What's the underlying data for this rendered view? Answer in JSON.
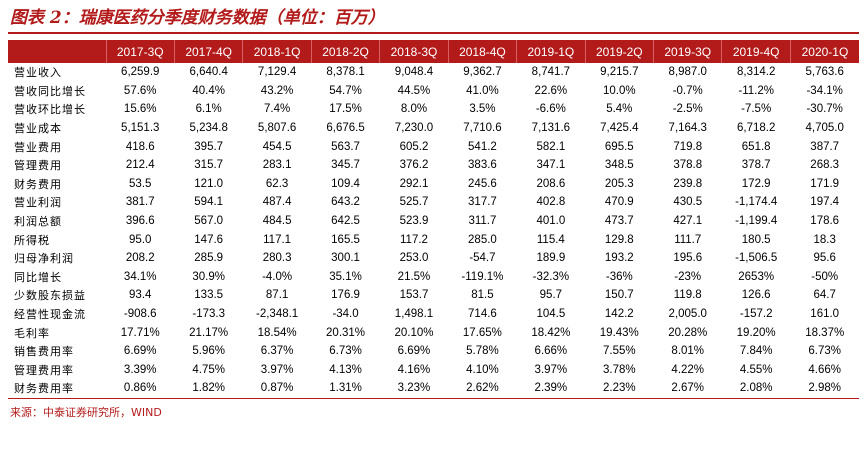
{
  "title": "图表 2：瑞康医药分季度财务数据（单位：百万）",
  "source": "来源：中泰证券研究所，WIND",
  "columns": [
    "2017-3Q",
    "2017-4Q",
    "2018-1Q",
    "2018-2Q",
    "2018-3Q",
    "2018-4Q",
    "2019-1Q",
    "2019-2Q",
    "2019-3Q",
    "2019-4Q",
    "2020-1Q"
  ],
  "rows": [
    {
      "label": "营业收入",
      "values": [
        "6,259.9",
        "6,640.4",
        "7,129.4",
        "8,378.1",
        "9,048.4",
        "9,362.7",
        "8,741.7",
        "9,215.7",
        "8,987.0",
        "8,314.2",
        "5,763.6"
      ]
    },
    {
      "label": "营收同比增长",
      "values": [
        "57.6%",
        "40.4%",
        "43.2%",
        "54.7%",
        "44.5%",
        "41.0%",
        "22.6%",
        "10.0%",
        "-0.7%",
        "-11.2%",
        "-34.1%"
      ]
    },
    {
      "label": "营收环比增长",
      "values": [
        "15.6%",
        "6.1%",
        "7.4%",
        "17.5%",
        "8.0%",
        "3.5%",
        "-6.6%",
        "5.4%",
        "-2.5%",
        "-7.5%",
        "-30.7%"
      ]
    },
    {
      "label": "营业成本",
      "values": [
        "5,151.3",
        "5,234.8",
        "5,807.6",
        "6,676.5",
        "7,230.0",
        "7,710.6",
        "7,131.6",
        "7,425.4",
        "7,164.3",
        "6,718.2",
        "4,705.0"
      ]
    },
    {
      "label": "营业费用",
      "values": [
        "418.6",
        "395.7",
        "454.5",
        "563.7",
        "605.2",
        "541.2",
        "582.1",
        "695.5",
        "719.8",
        "651.8",
        "387.7"
      ]
    },
    {
      "label": "管理费用",
      "values": [
        "212.4",
        "315.7",
        "283.1",
        "345.7",
        "376.2",
        "383.6",
        "347.1",
        "348.5",
        "378.8",
        "378.7",
        "268.3"
      ]
    },
    {
      "label": "财务费用",
      "values": [
        "53.5",
        "121.0",
        "62.3",
        "109.4",
        "292.1",
        "245.6",
        "208.6",
        "205.3",
        "239.8",
        "172.9",
        "171.9"
      ]
    },
    {
      "label": "营业利润",
      "values": [
        "381.7",
        "594.1",
        "487.4",
        "643.2",
        "525.7",
        "317.7",
        "402.8",
        "470.9",
        "430.5",
        "-1,174.4",
        "197.4"
      ]
    },
    {
      "label": "利润总额",
      "values": [
        "396.6",
        "567.0",
        "484.5",
        "642.5",
        "523.9",
        "311.7",
        "401.0",
        "473.7",
        "427.1",
        "-1,199.4",
        "178.6"
      ]
    },
    {
      "label": "所得税",
      "values": [
        "95.0",
        "147.6",
        "117.1",
        "165.5",
        "117.2",
        "285.0",
        "115.4",
        "129.8",
        "111.7",
        "180.5",
        "18.3"
      ]
    },
    {
      "label": "归母净利润",
      "values": [
        "208.2",
        "285.9",
        "280.3",
        "300.1",
        "253.0",
        "-54.7",
        "189.9",
        "193.2",
        "195.6",
        "-1,506.5",
        "95.6"
      ]
    },
    {
      "label": "同比增长",
      "values": [
        "34.1%",
        "30.9%",
        "-4.0%",
        "35.1%",
        "21.5%",
        "-119.1%",
        "-32.3%",
        "-36%",
        "-23%",
        "2653%",
        "-50%"
      ]
    },
    {
      "label": "少数股东损益",
      "values": [
        "93.4",
        "133.5",
        "87.1",
        "176.9",
        "153.7",
        "81.5",
        "95.7",
        "150.7",
        "119.8",
        "126.6",
        "64.7"
      ]
    },
    {
      "label": "经营性现金流",
      "values": [
        "-908.6",
        "-173.3",
        "-2,348.1",
        "-34.0",
        "1,498.1",
        "714.6",
        "104.5",
        "142.2",
        "2,005.0",
        "-157.2",
        "161.0"
      ]
    },
    {
      "label": "毛利率",
      "values": [
        "17.71%",
        "21.17%",
        "18.54%",
        "20.31%",
        "20.10%",
        "17.65%",
        "18.42%",
        "19.43%",
        "20.28%",
        "19.20%",
        "18.37%"
      ]
    },
    {
      "label": "销售费用率",
      "values": [
        "6.69%",
        "5.96%",
        "6.37%",
        "6.73%",
        "6.69%",
        "5.78%",
        "6.66%",
        "7.55%",
        "8.01%",
        "7.84%",
        "6.73%"
      ]
    },
    {
      "label": "管理费用率",
      "values": [
        "3.39%",
        "4.75%",
        "3.97%",
        "4.13%",
        "4.16%",
        "4.10%",
        "3.97%",
        "3.78%",
        "4.22%",
        "4.55%",
        "4.66%"
      ]
    },
    {
      "label": "财务费用率",
      "values": [
        "0.86%",
        "1.82%",
        "0.87%",
        "1.31%",
        "3.23%",
        "2.62%",
        "2.39%",
        "2.23%",
        "2.67%",
        "2.08%",
        "2.98%"
      ]
    }
  ]
}
